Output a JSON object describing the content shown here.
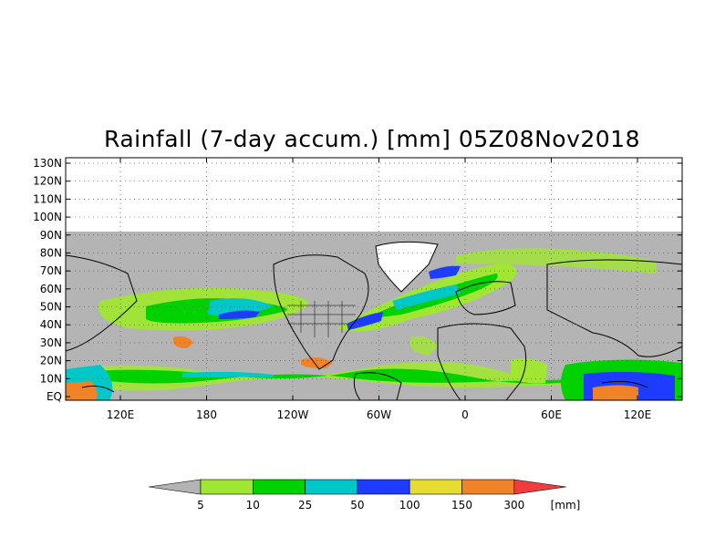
{
  "title": "Rainfall (7-day accum.) [mm] 05Z08Nov2018",
  "map": {
    "lat_labels": [
      "130N",
      "120N",
      "110N",
      "100N",
      "90N",
      "80N",
      "70N",
      "60N",
      "50N",
      "40N",
      "30N",
      "20N",
      "10N",
      "EQ"
    ],
    "lon_labels": [
      "120E",
      "180",
      "120W",
      "60W",
      "0",
      "60E",
      "120E"
    ],
    "no_data_color": "#b4b4b4",
    "background_color": "#ffffff",
    "gridlines": "dotted"
  },
  "legend": {
    "unit": "[mm]",
    "thresholds": [
      "5",
      "10",
      "25",
      "50",
      "100",
      "150",
      "300"
    ],
    "colors": [
      "#b4b4b4",
      "#a0e632",
      "#00d200",
      "#00c8c8",
      "#1e3cff",
      "#e6dc32",
      "#f08228",
      "#f03c3c"
    ]
  }
}
